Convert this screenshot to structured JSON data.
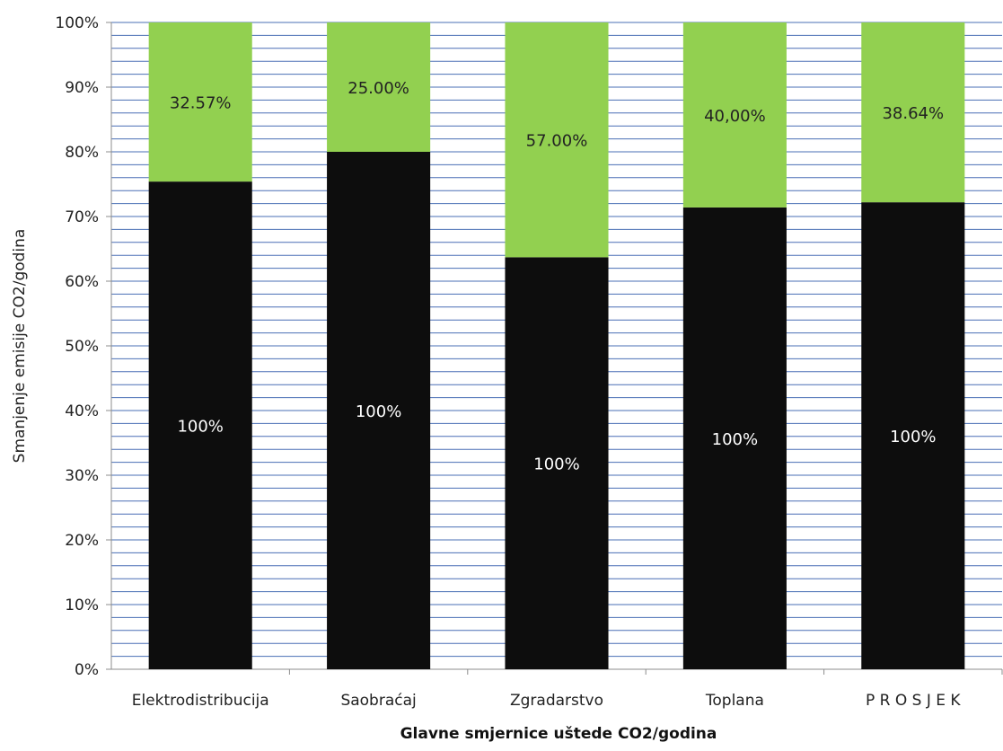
{
  "chart_data": {
    "type": "bar",
    "stacked": true,
    "title": "",
    "xlabel": "Glavne smjernice uštede CO2/godina",
    "ylabel": "Smanjenje emisije CO2/godina",
    "ylim": [
      0,
      100
    ],
    "y_tick_labels": [
      "0%",
      "10%",
      "20%",
      "30%",
      "40%",
      "50%",
      "60%",
      "70%",
      "80%",
      "90%",
      "100%"
    ],
    "grid": true,
    "categories": [
      "Elektrodistribucija",
      "Saobraćaj",
      "Zgradarstvo",
      "Toplana",
      "P R O S J E K"
    ],
    "series": [
      {
        "color": "#0d0d0d",
        "values": [
          75.4,
          80.0,
          63.7,
          71.4,
          72.2
        ],
        "labels": [
          "100%",
          "100%",
          "100%",
          "100%",
          "100%"
        ]
      },
      {
        "color": "#92d050",
        "values": [
          24.6,
          20.0,
          36.3,
          28.6,
          27.8
        ],
        "labels": [
          "32.57%",
          "25.00%",
          "57.00%",
          "40,00%",
          "38.64%"
        ]
      }
    ],
    "grid_color": "#4a6fb5"
  }
}
